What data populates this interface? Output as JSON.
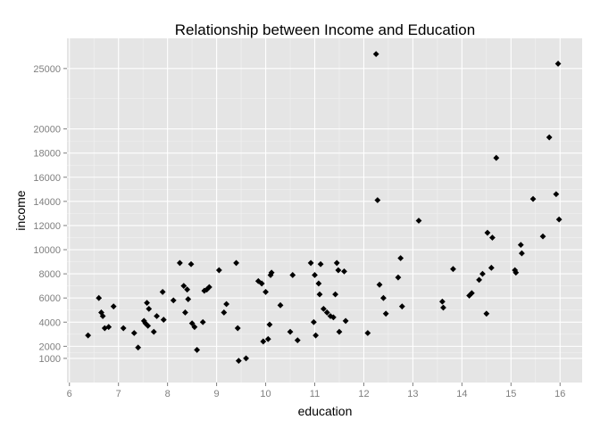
{
  "chart_data": {
    "type": "scatter",
    "title": "Relationship between Income and Education",
    "xlabel": "education",
    "ylabel": "income",
    "xlim": [
      5.95,
      16.45
    ],
    "ylim": [
      -1000,
      27500
    ],
    "xticks": [
      6,
      7,
      8,
      9,
      10,
      11,
      12,
      13,
      14,
      15,
      16
    ],
    "yticks": [
      1000,
      2000,
      4000,
      6000,
      8000,
      10000,
      12000,
      14000,
      16000,
      18000,
      20000,
      25000
    ],
    "grid": true,
    "legend": "none",
    "colors": {
      "panel": "#e5e5e5",
      "grid_major": "#ffffff",
      "grid_minor": "#f2f2f2",
      "point": "#000000"
    },
    "points": [
      [
        6.38,
        2900
      ],
      [
        6.6,
        6000
      ],
      [
        6.65,
        4800
      ],
      [
        6.68,
        4500
      ],
      [
        6.72,
        3500
      ],
      [
        6.8,
        3600
      ],
      [
        6.9,
        5300
      ],
      [
        7.1,
        3500
      ],
      [
        7.32,
        3100
      ],
      [
        7.4,
        1900
      ],
      [
        7.52,
        4100
      ],
      [
        7.55,
        3900
      ],
      [
        7.58,
        5600
      ],
      [
        7.6,
        3700
      ],
      [
        7.62,
        5100
      ],
      [
        7.72,
        3200
      ],
      [
        7.78,
        4500
      ],
      [
        7.9,
        6500
      ],
      [
        7.92,
        4200
      ],
      [
        8.12,
        5800
      ],
      [
        8.25,
        8900
      ],
      [
        8.33,
        7000
      ],
      [
        8.36,
        4800
      ],
      [
        8.4,
        6700
      ],
      [
        8.42,
        5900
      ],
      [
        8.48,
        8800
      ],
      [
        8.5,
        3900
      ],
      [
        8.55,
        3600
      ],
      [
        8.6,
        1700
      ],
      [
        8.72,
        4000
      ],
      [
        8.75,
        6600
      ],
      [
        8.8,
        6700
      ],
      [
        8.85,
        6900
      ],
      [
        9.05,
        8300
      ],
      [
        9.15,
        4800
      ],
      [
        9.2,
        5500
      ],
      [
        9.4,
        8900
      ],
      [
        9.43,
        3500
      ],
      [
        9.45,
        800
      ],
      [
        9.6,
        1000
      ],
      [
        9.85,
        7400
      ],
      [
        9.92,
        7200
      ],
      [
        9.95,
        2400
      ],
      [
        10.0,
        6500
      ],
      [
        10.05,
        2600
      ],
      [
        10.08,
        3800
      ],
      [
        10.1,
        7900
      ],
      [
        10.12,
        8100
      ],
      [
        10.3,
        5400
      ],
      [
        10.5,
        3200
      ],
      [
        10.55,
        7900
      ],
      [
        10.65,
        2500
      ],
      [
        10.92,
        8900
      ],
      [
        10.98,
        4000
      ],
      [
        11.0,
        7900
      ],
      [
        11.02,
        2900
      ],
      [
        11.08,
        7200
      ],
      [
        11.1,
        6300
      ],
      [
        11.12,
        8800
      ],
      [
        11.18,
        5100
      ],
      [
        11.25,
        4800
      ],
      [
        11.32,
        4500
      ],
      [
        11.38,
        4400
      ],
      [
        11.42,
        6300
      ],
      [
        11.45,
        8900
      ],
      [
        11.48,
        8300
      ],
      [
        11.5,
        3200
      ],
      [
        11.6,
        8200
      ],
      [
        11.63,
        4100
      ],
      [
        12.08,
        3100
      ],
      [
        12.25,
        26200
      ],
      [
        12.28,
        14100
      ],
      [
        12.32,
        7100
      ],
      [
        12.4,
        6000
      ],
      [
        12.45,
        4700
      ],
      [
        12.7,
        7700
      ],
      [
        12.75,
        9300
      ],
      [
        12.78,
        5300
      ],
      [
        13.12,
        12400
      ],
      [
        13.6,
        5700
      ],
      [
        13.62,
        5200
      ],
      [
        13.82,
        8400
      ],
      [
        14.15,
        6200
      ],
      [
        14.2,
        6400
      ],
      [
        14.35,
        7500
      ],
      [
        14.42,
        8000
      ],
      [
        14.5,
        4700
      ],
      [
        14.52,
        11400
      ],
      [
        14.6,
        8500
      ],
      [
        14.62,
        11000
      ],
      [
        14.7,
        17600
      ],
      [
        15.08,
        8300
      ],
      [
        15.1,
        8100
      ],
      [
        15.2,
        10400
      ],
      [
        15.22,
        9700
      ],
      [
        15.45,
        14200
      ],
      [
        15.65,
        11100
      ],
      [
        15.78,
        19300
      ],
      [
        15.92,
        14600
      ],
      [
        15.96,
        25400
      ],
      [
        15.98,
        12500
      ]
    ]
  }
}
